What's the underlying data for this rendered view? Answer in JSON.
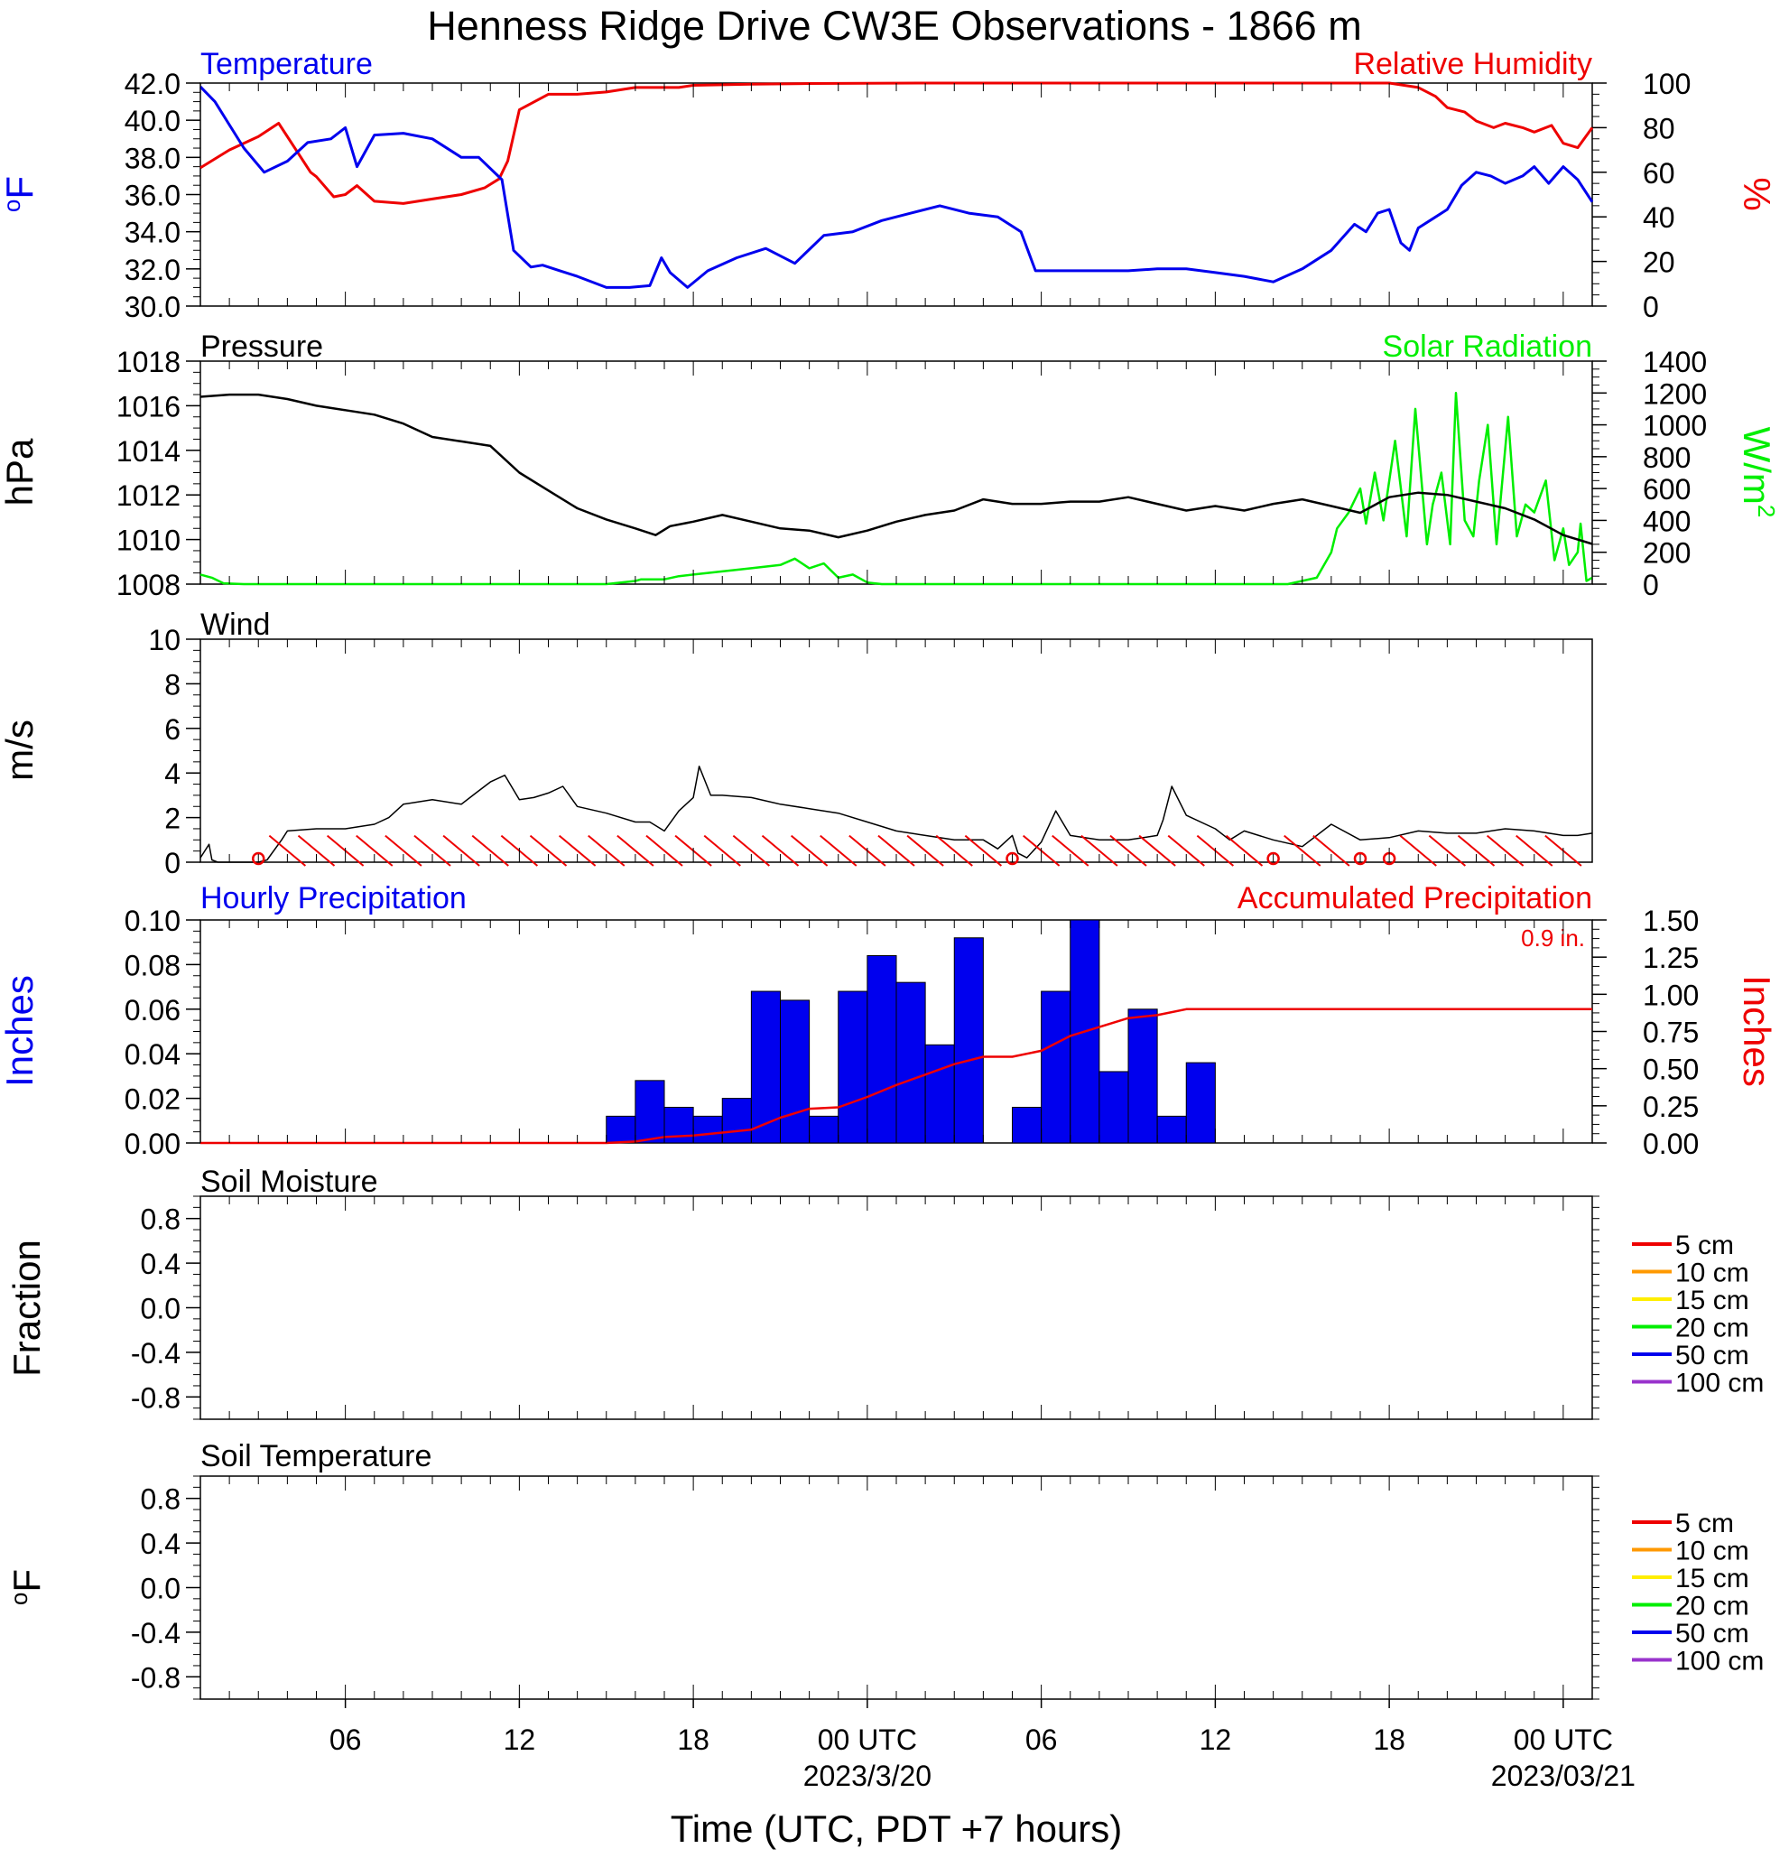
{
  "title": "Henness Ridge Drive CW3E Observations - 1866 m",
  "xlabel": "Time (UTC, PDT +7 hours)",
  "time_axis": {
    "start_hour": 19,
    "end_hour": 67,
    "ticks": [
      {
        "hour": 24,
        "label": "06",
        "date": ""
      },
      {
        "hour": 30,
        "label": "12",
        "date": ""
      },
      {
        "hour": 36,
        "label": "18",
        "date": ""
      },
      {
        "hour": 42,
        "label": "00 UTC",
        "date": "2023/3/20"
      },
      {
        "hour": 48,
        "label": "06",
        "date": ""
      },
      {
        "hour": 54,
        "label": "12",
        "date": ""
      },
      {
        "hour": 60,
        "label": "18",
        "date": ""
      },
      {
        "hour": 66,
        "label": "00 UTC",
        "date": "2023/03/21"
      }
    ]
  },
  "colors": {
    "blue": "#0000ee",
    "red": "#ee0000",
    "green": "#00ee00",
    "black": "#000000"
  },
  "chart_data": [
    {
      "type": "line",
      "panel": "temperature_humidity",
      "left_title": "Temperature",
      "right_title": "Relative Humidity",
      "ylabel": "oF",
      "y2label": "%",
      "ylim": [
        30,
        42
      ],
      "y2lim": [
        0,
        100
      ],
      "yticks": [
        "42.0",
        "40.0",
        "38.0",
        "36.0",
        "34.0",
        "32.0",
        "30.0"
      ],
      "y2ticks": [
        "100",
        "80",
        "60",
        "40",
        "20",
        "0"
      ],
      "series": [
        {
          "name": "Temperature",
          "axis": "left",
          "color": "#0000ee",
          "x": [
            19,
            19.5,
            20.5,
            21.2,
            22,
            22.7,
            23.5,
            24,
            24.4,
            25,
            26,
            27,
            28,
            28.6,
            29.4,
            29.8,
            30.4,
            30.8,
            31.4,
            32,
            33,
            33.8,
            34.5,
            34.9,
            35.2,
            35.8,
            36.5,
            37.5,
            38.5,
            39.5,
            40.5,
            41.5,
            42.5,
            43.5,
            44.5,
            45.5,
            46.5,
            47.3,
            47.8,
            48.2,
            49,
            50,
            51,
            52,
            53,
            54,
            55,
            56,
            57,
            58,
            58.8,
            59.2,
            59.6,
            60,
            60.4,
            60.7,
            61,
            61.5,
            62,
            62.5,
            63,
            63.5,
            64,
            64.6,
            65,
            65.5,
            66,
            66.5,
            67
          ],
          "y": [
            41.8,
            41.0,
            38.5,
            37.2,
            37.8,
            38.8,
            39.0,
            39.6,
            37.5,
            39.2,
            39.3,
            39.0,
            38.0,
            38.0,
            36.8,
            33.0,
            32.1,
            32.2,
            31.9,
            31.6,
            31.0,
            31.0,
            31.1,
            32.6,
            31.8,
            31.0,
            31.9,
            32.6,
            33.1,
            32.3,
            33.8,
            34.0,
            34.6,
            35.0,
            35.4,
            35.0,
            34.8,
            34.0,
            31.9,
            31.9,
            31.9,
            31.9,
            31.9,
            32.0,
            32.0,
            31.8,
            31.6,
            31.3,
            32.0,
            33.0,
            34.4,
            34.0,
            35.0,
            35.2,
            33.4,
            33.0,
            34.2,
            34.7,
            35.2,
            36.5,
            37.2,
            37.0,
            36.6,
            37.0,
            37.5,
            36.6,
            37.5,
            36.8,
            35.6
          ]
        },
        {
          "name": "Relative Humidity",
          "axis": "right",
          "color": "#ee0000",
          "x": [
            19,
            20,
            21,
            21.7,
            22.3,
            22.8,
            23,
            23.6,
            24,
            24.4,
            25,
            26,
            27,
            28,
            28.8,
            29.3,
            29.6,
            30,
            31,
            32,
            33,
            34,
            35,
            35.5,
            36,
            38,
            40,
            44,
            50,
            56,
            60,
            61,
            61.6,
            62,
            62.6,
            63,
            63.6,
            64,
            64.6,
            65,
            65.6,
            66,
            66.5,
            67
          ],
          "y": [
            62,
            70,
            76,
            82,
            70,
            60,
            58,
            49,
            50,
            54,
            47,
            46,
            48,
            50,
            53,
            57,
            65,
            88,
            95,
            95,
            96,
            98,
            98,
            98,
            99,
            99.5,
            99.8,
            100,
            100,
            100,
            100,
            98,
            94,
            89,
            87,
            83,
            80,
            82,
            80,
            78,
            81,
            73,
            71,
            80
          ]
        }
      ]
    },
    {
      "type": "line",
      "panel": "pressure_solar",
      "left_title": "Pressure",
      "right_title": "Solar Radiation",
      "ylabel": "hPa",
      "y2label": "W/m",
      "y2label_sup": "2",
      "ylim": [
        1008,
        1018
      ],
      "y2lim": [
        0,
        1400
      ],
      "yticks": [
        "1018",
        "1016",
        "1014",
        "1012",
        "1010",
        "1008"
      ],
      "y2ticks": [
        "1400",
        "1200",
        "1000",
        "800",
        "600",
        "400",
        "200",
        "0"
      ],
      "series": [
        {
          "name": "Pressure",
          "axis": "left",
          "color": "#000000",
          "x": [
            19,
            20,
            21,
            22,
            23,
            24,
            25,
            26,
            27,
            28,
            29,
            30,
            31,
            32,
            33,
            34,
            34.7,
            35.2,
            36,
            37,
            38,
            39,
            40,
            41,
            42,
            43,
            44,
            45,
            46,
            47,
            48,
            49,
            50,
            51,
            52,
            53,
            54,
            55,
            56,
            57,
            58,
            59,
            60,
            61,
            62,
            63,
            64,
            65,
            66,
            67
          ],
          "y": [
            1016.4,
            1016.5,
            1016.5,
            1016.3,
            1016.0,
            1015.8,
            1015.6,
            1015.2,
            1014.6,
            1014.4,
            1014.2,
            1013.0,
            1012.2,
            1011.4,
            1010.9,
            1010.5,
            1010.2,
            1010.6,
            1010.8,
            1011.1,
            1010.8,
            1010.5,
            1010.4,
            1010.1,
            1010.4,
            1010.8,
            1011.1,
            1011.3,
            1011.8,
            1011.6,
            1011.6,
            1011.7,
            1011.7,
            1011.9,
            1011.6,
            1011.3,
            1011.5,
            1011.3,
            1011.6,
            1011.8,
            1011.5,
            1011.2,
            1011.9,
            1012.1,
            1012.0,
            1011.7,
            1011.4,
            1010.9,
            1010.2,
            1009.8
          ]
        },
        {
          "name": "Solar Radiation",
          "axis": "right",
          "color": "#00ee00",
          "x": [
            19,
            19.4,
            19.8,
            20.5,
            25,
            30,
            33,
            34,
            34.2,
            35,
            35.5,
            36,
            37,
            38,
            39,
            39.5,
            40,
            40.5,
            41,
            41.5,
            42,
            42.5,
            43,
            45,
            50,
            55,
            56.5,
            57.5,
            58,
            58.2,
            58.6,
            59,
            59.2,
            59.5,
            59.8,
            60.2,
            60.6,
            60.9,
            61.3,
            61.5,
            61.8,
            62.1,
            62.3,
            62.6,
            62.9,
            63.1,
            63.4,
            63.7,
            64.1,
            64.4,
            64.7,
            65,
            65.4,
            65.7,
            66,
            66.2,
            66.5,
            66.6,
            66.8,
            67
          ],
          "y": [
            60,
            40,
            5,
            0,
            0,
            0,
            0,
            20,
            30,
            30,
            50,
            60,
            80,
            100,
            120,
            160,
            100,
            130,
            40,
            60,
            10,
            0,
            0,
            0,
            0,
            0,
            0,
            40,
            200,
            350,
            450,
            600,
            380,
            700,
            400,
            900,
            300,
            1100,
            250,
            500,
            700,
            250,
            1200,
            400,
            300,
            650,
            1000,
            250,
            1050,
            300,
            500,
            450,
            650,
            150,
            350,
            120,
            200,
            380,
            20,
            40
          ]
        }
      ]
    },
    {
      "type": "line",
      "panel": "wind",
      "left_title": "Wind",
      "ylabel": "m/s",
      "ylim": [
        0,
        10
      ],
      "yticks": [
        "10",
        "8",
        "6",
        "4",
        "2",
        "0"
      ],
      "series": [
        {
          "name": "Wind",
          "color": "#000000",
          "x": [
            19,
            19.3,
            19.4,
            19.6,
            20,
            21,
            21.3,
            21.8,
            22,
            23,
            24,
            25,
            25.5,
            26,
            27,
            28,
            28.5,
            29,
            29.5,
            30,
            30.5,
            31,
            31.5,
            32,
            33,
            34,
            34.5,
            35,
            35.5,
            36,
            36.2,
            36.6,
            37,
            38,
            39,
            40,
            41,
            42,
            43,
            44,
            45,
            46,
            46.5,
            47,
            47.2,
            47.5,
            48,
            48.5,
            49,
            50,
            51,
            52,
            52.2,
            52.5,
            53,
            54,
            54.5,
            55,
            55.5,
            56,
            57,
            58,
            59,
            60,
            61,
            62,
            63,
            64,
            65,
            66,
            66.5,
            67
          ],
          "y": [
            0.2,
            0.8,
            0.1,
            0,
            0,
            0,
            0.1,
            1.0,
            1.4,
            1.5,
            1.5,
            1.7,
            2.0,
            2.6,
            2.8,
            2.6,
            3.1,
            3.6,
            3.9,
            2.8,
            2.9,
            3.1,
            3.4,
            2.5,
            2.2,
            1.8,
            1.8,
            1.4,
            2.3,
            2.9,
            4.3,
            3.0,
            3.0,
            2.9,
            2.6,
            2.4,
            2.2,
            1.8,
            1.4,
            1.2,
            1.0,
            1.0,
            0.6,
            1.2,
            0.4,
            0.2,
            0.9,
            2.3,
            1.2,
            1.0,
            1.0,
            1.2,
            1.9,
            3.4,
            2.1,
            1.5,
            1.0,
            1.4,
            1.2,
            1.0,
            0.7,
            1.7,
            1.0,
            1.1,
            1.4,
            1.3,
            1.3,
            1.5,
            1.4,
            1.2,
            1.2,
            1.3
          ]
        }
      ]
    },
    {
      "type": "bar",
      "panel": "precipitation",
      "left_title": "Hourly Precipitation",
      "right_title": "Accumulated Precipitation",
      "total_label": "0.9 in.",
      "ylabel": "Inches",
      "y2label": "Inches",
      "ylim": [
        0,
        0.1
      ],
      "y2lim": [
        0,
        1.5
      ],
      "yticks": [
        "0.10",
        "0.08",
        "0.06",
        "0.04",
        "0.02",
        "0.00"
      ],
      "y2ticks": [
        "1.50",
        "1.25",
        "1.00",
        "0.75",
        "0.50",
        "0.25",
        "0.00"
      ],
      "series": [
        {
          "name": "Hourly Precipitation",
          "axis": "left",
          "color": "#0000ee",
          "x": [
            33,
            34,
            35,
            36,
            37,
            38,
            39,
            40,
            41,
            42,
            43,
            44,
            45,
            46,
            47,
            48,
            49,
            50,
            51,
            52,
            53
          ],
          "values": [
            0.012,
            0.028,
            0.016,
            0.012,
            0.02,
            0.068,
            0.064,
            0.012,
            0.068,
            0.084,
            0.072,
            0.044,
            0.092,
            0,
            0.016,
            0.068,
            0.1,
            0.032,
            0.06,
            0.012,
            0.036
          ]
        },
        {
          "name": "Accumulated Precipitation",
          "axis": "right",
          "color": "#ee0000",
          "x": [
            19,
            33,
            34,
            35,
            36,
            37,
            38,
            39,
            40,
            41,
            42,
            43,
            44,
            45,
            46,
            47,
            48,
            49,
            50,
            51,
            52,
            53,
            67
          ],
          "y": [
            0,
            0,
            0.01,
            0.04,
            0.05,
            0.07,
            0.09,
            0.17,
            0.23,
            0.24,
            0.31,
            0.39,
            0.46,
            0.53,
            0.58,
            0.58,
            0.62,
            0.72,
            0.78,
            0.84,
            0.86,
            0.9,
            0.9
          ]
        }
      ]
    },
    {
      "type": "line",
      "panel": "soil_moisture",
      "left_title": "Soil Moisture",
      "ylabel": "Fraction",
      "ylim": [
        -1,
        1
      ],
      "yticks": [
        "0.8",
        "0.4",
        "0.0",
        "-0.4",
        "-0.8"
      ],
      "legend": [
        {
          "label": "5 cm",
          "color": "#ee0000"
        },
        {
          "label": "10 cm",
          "color": "#ff9900"
        },
        {
          "label": "15 cm",
          "color": "#ffee00"
        },
        {
          "label": "20 cm",
          "color": "#00ee00"
        },
        {
          "label": "50 cm",
          "color": "#0000ee"
        },
        {
          "label": "100 cm",
          "color": "#9933cc"
        }
      ]
    },
    {
      "type": "line",
      "panel": "soil_temperature",
      "left_title": "Soil Temperature",
      "ylabel": "oF",
      "ylim": [
        -1,
        1
      ],
      "yticks": [
        "0.8",
        "0.4",
        "0.0",
        "-0.4",
        "-0.8"
      ],
      "legend": [
        {
          "label": "5 cm",
          "color": "#ee0000"
        },
        {
          "label": "10 cm",
          "color": "#ff9900"
        },
        {
          "label": "15 cm",
          "color": "#ffee00"
        },
        {
          "label": "20 cm",
          "color": "#00ee00"
        },
        {
          "label": "50 cm",
          "color": "#0000ee"
        },
        {
          "label": "100 cm",
          "color": "#9933cc"
        }
      ]
    }
  ]
}
